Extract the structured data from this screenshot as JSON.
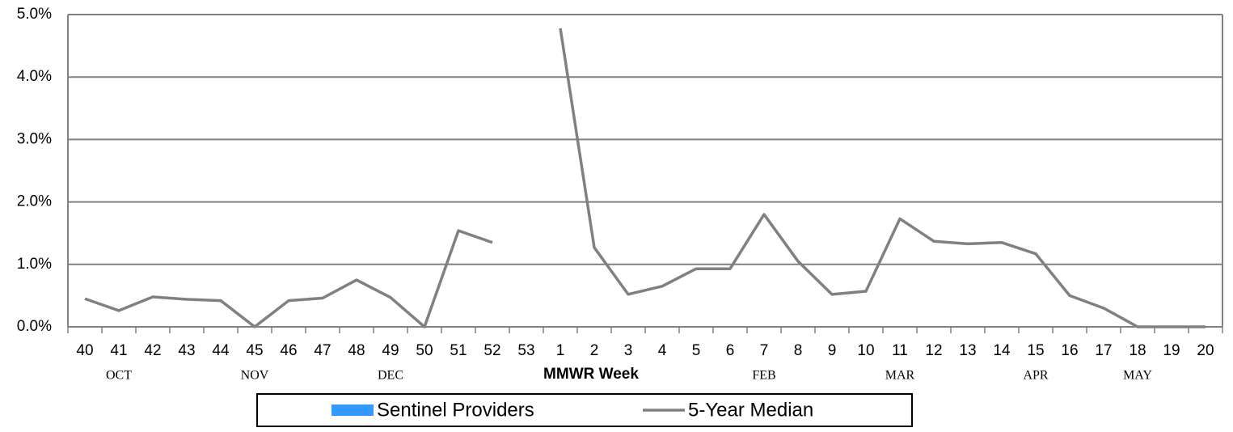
{
  "chart_data": {
    "type": "line",
    "x_label": "MMWR Week",
    "categories": [
      "40",
      "41",
      "42",
      "43",
      "44",
      "45",
      "46",
      "47",
      "48",
      "49",
      "50",
      "51",
      "52",
      "53",
      "1",
      "2",
      "3",
      "4",
      "5",
      "6",
      "7",
      "8",
      "9",
      "10",
      "11",
      "12",
      "13",
      "14",
      "15",
      "16",
      "17",
      "18",
      "19",
      "20"
    ],
    "month_labels": [
      null,
      "OCT",
      null,
      null,
      null,
      "NOV",
      null,
      null,
      null,
      "DEC",
      null,
      null,
      null,
      null,
      null,
      null,
      null,
      null,
      null,
      null,
      "FEB",
      null,
      null,
      null,
      "MAR",
      null,
      null,
      null,
      "APR",
      null,
      null,
      "MAY",
      null,
      null
    ],
    "series": [
      {
        "name": "Sentinel Providers",
        "type": "bar",
        "color": "#3399ff",
        "values": [
          null,
          null,
          null,
          null,
          null,
          null,
          null,
          null,
          null,
          null,
          null,
          null,
          null,
          null,
          null,
          null,
          null,
          null,
          null,
          null,
          null,
          null,
          null,
          null,
          null,
          null,
          null,
          null,
          null,
          null,
          null,
          null,
          null,
          null
        ]
      },
      {
        "name": "5-Year Median",
        "type": "line",
        "color": "#808080",
        "values": [
          0.45,
          0.26,
          0.48,
          0.44,
          0.42,
          0.0,
          0.42,
          0.46,
          0.75,
          0.47,
          0.0,
          1.54,
          1.35,
          null,
          4.78,
          1.27,
          0.52,
          0.65,
          0.93,
          0.93,
          1.8,
          1.05,
          0.52,
          0.57,
          1.73,
          1.37,
          1.33,
          1.35,
          1.17,
          0.5,
          0.3,
          0.0,
          0.0,
          0.0
        ]
      }
    ],
    "ylim": [
      0,
      5
    ],
    "yticks": [
      {
        "value": 0,
        "label": "0.0%"
      },
      {
        "value": 1,
        "label": "1.0%"
      },
      {
        "value": 2,
        "label": "2.0%"
      },
      {
        "value": 3,
        "label": "3.0%"
      },
      {
        "value": 4,
        "label": "4.0%"
      },
      {
        "value": 5,
        "label": "5.0%"
      }
    ],
    "grid": true
  }
}
